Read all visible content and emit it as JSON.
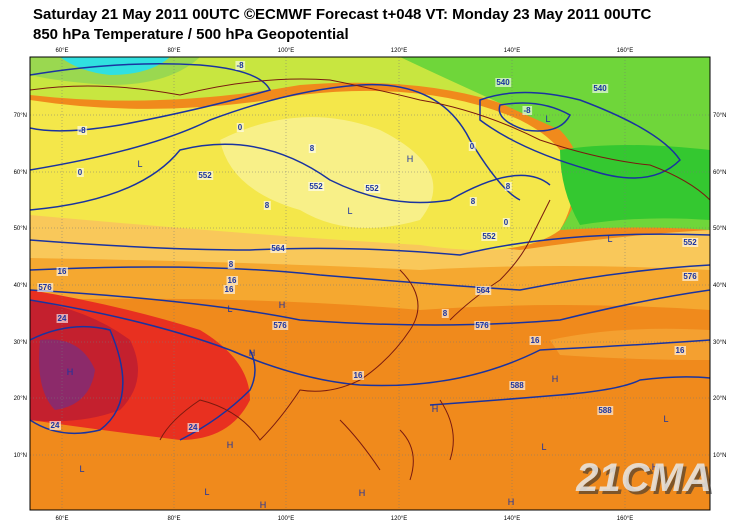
{
  "header": {
    "title": "Saturday 21 May 2011 00UTC ©ECMWF Forecast t+048 VT: Monday 23 May 2011 00UTC",
    "subtitle": "850 hPa Temperature / 500 hPa Geopotential"
  },
  "map": {
    "longitude_labels": [
      "60°E",
      "80°E",
      "100°E",
      "120°E",
      "140°E",
      "160°E"
    ],
    "latitude_labels": [
      "70°N",
      "60°N",
      "50°N",
      "40°N",
      "30°N",
      "20°N",
      "10°N"
    ],
    "contour_labels": [
      "-8",
      "-8",
      "0",
      "0",
      "8",
      "552",
      "552",
      "552",
      "8",
      "8",
      "16",
      "16",
      "16",
      "564",
      "576",
      "24",
      "576",
      "16",
      "24",
      "24",
      "540",
      "540",
      "-8",
      "0",
      "8",
      "8",
      "0",
      "552",
      "564",
      "576",
      "16",
      "16",
      "552",
      "588",
      "588",
      "8",
      "576"
    ],
    "centers": [
      "L",
      "L",
      "H",
      "L",
      "L",
      "L",
      "H",
      "H",
      "H",
      "H",
      "H",
      "L",
      "H",
      "L",
      "L",
      "H",
      "H",
      "H",
      "L",
      "H"
    ],
    "watermark": "21CMA"
  }
}
